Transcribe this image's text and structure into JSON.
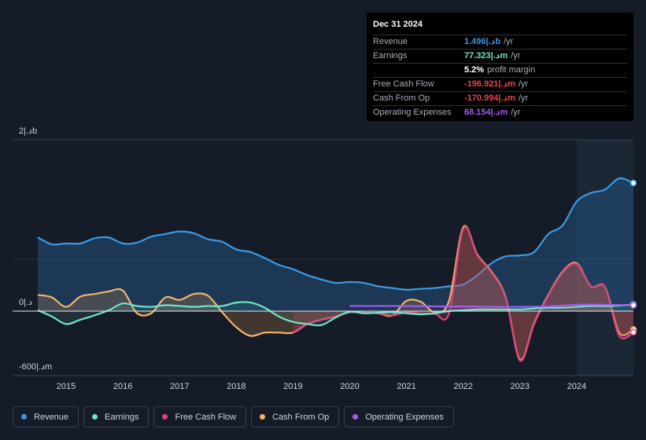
{
  "tooltip": {
    "date": "Dec 31 2024",
    "rows": [
      {
        "label": "Revenue",
        "value": "1.496|.دb",
        "unit": "/yr",
        "color": "#3a9ae8"
      },
      {
        "label": "Earnings",
        "value": "77.323|.دm",
        "unit": "/yr",
        "color": "#6fe3c9"
      },
      {
        "label": "",
        "value": "5.2%",
        "unit": "profit margin",
        "color": "#ffffff"
      },
      {
        "label": "Free Cash Flow",
        "value": "-196.921|.دm",
        "unit": "/yr",
        "color": "#e8464f"
      },
      {
        "label": "Cash From Op",
        "value": "-170.994|.دm",
        "unit": "/yr",
        "color": "#e8464f"
      },
      {
        "label": "Operating Expenses",
        "value": "68.154|.دm",
        "unit": "/yr",
        "color": "#a25cf0"
      }
    ]
  },
  "legend": [
    {
      "label": "Revenue",
      "color": "#3a9ae8"
    },
    {
      "label": "Earnings",
      "color": "#6fe3c9"
    },
    {
      "label": "Free Cash Flow",
      "color": "#d9477d"
    },
    {
      "label": "Cash From Op",
      "color": "#f2b56b"
    },
    {
      "label": "Operating Expenses",
      "color": "#a25cf0"
    }
  ],
  "chart_data": {
    "type": "area",
    "title": "",
    "unit": "AED millions",
    "y_labels": {
      "top": "2|.دb",
      "zero": "0|.د",
      "bottom": "-600|.دm"
    },
    "ylim": [
      -600,
      2000
    ],
    "xlim": [
      2014.5,
      2025.0
    ],
    "x_ticks": [
      "2015",
      "2016",
      "2017",
      "2018",
      "2019",
      "2020",
      "2021",
      "2022",
      "2023",
      "2024"
    ],
    "highlight_from": 2024.0,
    "series": [
      {
        "name": "Revenue",
        "color": "#3a9ae8",
        "points": [
          [
            2014.5,
            860
          ],
          [
            2014.75,
            780
          ],
          [
            2015,
            790
          ],
          [
            2015.25,
            790
          ],
          [
            2015.5,
            850
          ],
          [
            2015.75,
            860
          ],
          [
            2016,
            790
          ],
          [
            2016.25,
            800
          ],
          [
            2016.5,
            870
          ],
          [
            2016.75,
            900
          ],
          [
            2017,
            930
          ],
          [
            2017.25,
            910
          ],
          [
            2017.5,
            840
          ],
          [
            2017.75,
            810
          ],
          [
            2018,
            720
          ],
          [
            2018.25,
            690
          ],
          [
            2018.5,
            620
          ],
          [
            2018.75,
            540
          ],
          [
            2019,
            490
          ],
          [
            2019.25,
            420
          ],
          [
            2019.5,
            370
          ],
          [
            2019.75,
            330
          ],
          [
            2020,
            340
          ],
          [
            2020.25,
            330
          ],
          [
            2020.5,
            290
          ],
          [
            2020.75,
            270
          ],
          [
            2021,
            250
          ],
          [
            2021.25,
            260
          ],
          [
            2021.5,
            270
          ],
          [
            2021.75,
            290
          ],
          [
            2022,
            310
          ],
          [
            2022.25,
            420
          ],
          [
            2022.5,
            560
          ],
          [
            2022.75,
            640
          ],
          [
            2023,
            650
          ],
          [
            2023.25,
            690
          ],
          [
            2023.5,
            900
          ],
          [
            2023.75,
            1000
          ],
          [
            2024,
            1280
          ],
          [
            2024.25,
            1380
          ],
          [
            2024.5,
            1420
          ],
          [
            2024.75,
            1550
          ],
          [
            2025,
            1496
          ]
        ]
      },
      {
        "name": "Earnings",
        "color": "#6fe3c9",
        "points": [
          [
            2014.5,
            10
          ],
          [
            2014.75,
            -50
          ],
          [
            2015,
            -120
          ],
          [
            2015.25,
            -80
          ],
          [
            2015.5,
            -40
          ],
          [
            2015.75,
            10
          ],
          [
            2016,
            90
          ],
          [
            2016.25,
            60
          ],
          [
            2016.5,
            50
          ],
          [
            2016.75,
            70
          ],
          [
            2017,
            60
          ],
          [
            2017.25,
            50
          ],
          [
            2017.5,
            60
          ],
          [
            2017.75,
            60
          ],
          [
            2018,
            100
          ],
          [
            2018.25,
            100
          ],
          [
            2018.5,
            40
          ],
          [
            2018.75,
            -50
          ],
          [
            2019,
            -100
          ],
          [
            2019.25,
            -120
          ],
          [
            2019.5,
            -130
          ],
          [
            2019.75,
            -60
          ],
          [
            2020,
            -5
          ],
          [
            2020.25,
            -20
          ],
          [
            2020.5,
            -15
          ],
          [
            2020.75,
            -10
          ],
          [
            2021,
            -20
          ],
          [
            2021.25,
            -30
          ],
          [
            2021.5,
            -20
          ],
          [
            2021.75,
            0
          ],
          [
            2022,
            10
          ],
          [
            2022.25,
            20
          ],
          [
            2022.5,
            20
          ],
          [
            2022.75,
            20
          ],
          [
            2023,
            20
          ],
          [
            2023.25,
            30
          ],
          [
            2023.5,
            40
          ],
          [
            2023.75,
            40
          ],
          [
            2024,
            50
          ],
          [
            2024.25,
            60
          ],
          [
            2024.5,
            60
          ],
          [
            2024.75,
            65
          ],
          [
            2025,
            77
          ]
        ]
      },
      {
        "name": "Free Cash Flow",
        "color": "#d9477d",
        "points": [
          [
            2019,
            -200
          ],
          [
            2019.25,
            -120
          ],
          [
            2019.5,
            -80
          ],
          [
            2019.75,
            -50
          ],
          [
            2020,
            -10
          ],
          [
            2020.25,
            -15
          ],
          [
            2020.5,
            -20
          ],
          [
            2020.75,
            -40
          ],
          [
            2021,
            -10
          ],
          [
            2021.25,
            -20
          ],
          [
            2021.5,
            -25
          ],
          [
            2021.75,
            -20
          ],
          [
            2022,
            960
          ],
          [
            2022.25,
            650
          ],
          [
            2022.5,
            450
          ],
          [
            2022.75,
            150
          ],
          [
            2023,
            -460
          ],
          [
            2023.25,
            -120
          ],
          [
            2023.5,
            180
          ],
          [
            2023.75,
            450
          ],
          [
            2024,
            550
          ],
          [
            2024.25,
            290
          ],
          [
            2024.5,
            280
          ],
          [
            2024.75,
            -230
          ],
          [
            2025,
            -197
          ]
        ]
      },
      {
        "name": "Cash From Op",
        "color": "#f2b56b",
        "points": [
          [
            2014.5,
            190
          ],
          [
            2014.75,
            160
          ],
          [
            2015,
            50
          ],
          [
            2015.25,
            170
          ],
          [
            2015.5,
            200
          ],
          [
            2015.75,
            230
          ],
          [
            2016,
            240
          ],
          [
            2016.25,
            -20
          ],
          [
            2016.5,
            -20
          ],
          [
            2016.75,
            160
          ],
          [
            2017,
            130
          ],
          [
            2017.25,
            200
          ],
          [
            2017.5,
            180
          ],
          [
            2017.75,
            -10
          ],
          [
            2018,
            -150
          ],
          [
            2018.25,
            -230
          ],
          [
            2018.5,
            -200
          ],
          [
            2018.75,
            -200
          ],
          [
            2019,
            -200
          ],
          [
            2019.25,
            -120
          ],
          [
            2019.5,
            -80
          ],
          [
            2019.75,
            -50
          ],
          [
            2020,
            -10
          ],
          [
            2020.25,
            -15
          ],
          [
            2020.5,
            -20
          ],
          [
            2020.75,
            -40
          ],
          [
            2021,
            120
          ],
          [
            2021.25,
            110
          ],
          [
            2021.5,
            -10
          ],
          [
            2021.75,
            120
          ],
          [
            2022,
            980
          ],
          [
            2022.25,
            660
          ],
          [
            2022.5,
            460
          ],
          [
            2022.75,
            160
          ],
          [
            2023,
            -450
          ],
          [
            2023.25,
            -110
          ],
          [
            2023.5,
            190
          ],
          [
            2023.75,
            460
          ],
          [
            2024,
            560
          ],
          [
            2024.25,
            290
          ],
          [
            2024.5,
            280
          ],
          [
            2024.75,
            -200
          ],
          [
            2025,
            -171
          ]
        ]
      },
      {
        "name": "Operating Expenses",
        "color": "#a25cf0",
        "points": [
          [
            2020,
            60
          ],
          [
            2020.5,
            60
          ],
          [
            2021,
            60
          ],
          [
            2021.5,
            55
          ],
          [
            2022,
            55
          ],
          [
            2022.5,
            50
          ],
          [
            2023,
            50
          ],
          [
            2023.5,
            55
          ],
          [
            2024,
            75
          ],
          [
            2024.5,
            75
          ],
          [
            2025,
            68
          ]
        ]
      }
    ]
  }
}
